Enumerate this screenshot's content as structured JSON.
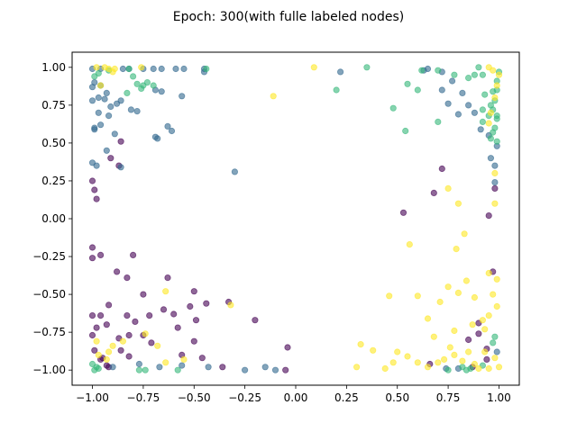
{
  "chart_data": {
    "type": "scatter",
    "title": "Epoch: 300(with fulle labeled nodes)",
    "xlabel": "",
    "ylabel": "",
    "xlim": [
      -1.1,
      1.1
    ],
    "ylim": [
      -1.1,
      1.1
    ],
    "xticks": [
      -1.0,
      -0.75,
      -0.5,
      -0.25,
      0.0,
      0.25,
      0.5,
      0.75,
      1.0
    ],
    "xtick_labels": [
      "−1.00",
      "−0.75",
      "−0.50",
      "−0.25",
      "0.00",
      "0.25",
      "0.50",
      "0.75",
      "1.00"
    ],
    "yticks": [
      1.0,
      0.75,
      0.5,
      0.25,
      0.0,
      -0.25,
      -0.5,
      -0.75,
      -1.0
    ],
    "ytick_labels": [
      "1.00",
      "0.75",
      "0.50",
      "0.25",
      "0.00",
      "−0.25",
      "−0.50",
      "−0.75",
      "−1.00"
    ],
    "grid": false,
    "legend": false,
    "marker_alpha": 0.6,
    "series": [
      {
        "color": "#440154",
        "points": [
          [
            -1.0,
            0.25
          ],
          [
            -0.99,
            0.19
          ],
          [
            -0.98,
            0.13
          ],
          [
            -1.0,
            -0.19
          ],
          [
            -1.0,
            -0.26
          ],
          [
            -0.96,
            -0.24
          ],
          [
            -0.91,
            0.4
          ],
          [
            -0.86,
            0.51
          ],
          [
            -0.87,
            0.35
          ],
          [
            -0.8,
            -0.24
          ],
          [
            -0.88,
            -0.35
          ],
          [
            -0.83,
            -0.39
          ],
          [
            -0.63,
            -0.39
          ],
          [
            -0.92,
            -0.57
          ],
          [
            -0.75,
            -0.5
          ],
          [
            -0.83,
            -0.64
          ],
          [
            -0.93,
            -0.7
          ],
          [
            -0.87,
            -0.79
          ],
          [
            -0.96,
            -0.64
          ],
          [
            -1.0,
            -0.64
          ],
          [
            -0.82,
            -0.77
          ],
          [
            -0.79,
            -0.68
          ],
          [
            -0.75,
            -0.77
          ],
          [
            -0.71,
            -0.82
          ],
          [
            -0.72,
            -0.64
          ],
          [
            -0.65,
            -0.6
          ],
          [
            -0.6,
            -0.63
          ],
          [
            -0.58,
            -0.72
          ],
          [
            -0.5,
            -0.48
          ],
          [
            -0.44,
            -0.56
          ],
          [
            -0.33,
            -0.55
          ],
          [
            -0.2,
            -0.67
          ],
          [
            -0.46,
            -0.92
          ],
          [
            -0.36,
            -0.98
          ],
          [
            -0.05,
            -1.0
          ],
          [
            -0.04,
            -0.85
          ],
          [
            -0.82,
            -0.91
          ],
          [
            -0.86,
            -0.87
          ],
          [
            -0.92,
            -0.98
          ],
          [
            -0.96,
            -0.93
          ],
          [
            -1.0,
            -0.77
          ],
          [
            -0.99,
            -0.87
          ],
          [
            -0.98,
            -0.72
          ],
          [
            -0.52,
            -0.58
          ],
          [
            -0.49,
            -0.67
          ],
          [
            -0.5,
            -0.81
          ],
          [
            -0.56,
            -0.9
          ],
          [
            0.53,
            0.04
          ],
          [
            0.68,
            0.17
          ],
          [
            0.72,
            0.33
          ],
          [
            0.98,
            0.2
          ],
          [
            0.95,
            0.02
          ],
          [
            0.97,
            -0.35
          ],
          [
            0.9,
            -0.76
          ],
          [
            0.85,
            -0.8
          ],
          [
            0.94,
            -0.86
          ],
          [
            0.87,
            -0.98
          ],
          [
            0.94,
            -0.93
          ],
          [
            0.9,
            -0.69
          ],
          [
            0.66,
            -0.96
          ],
          [
            -0.93,
            -0.97
          ],
          [
            -0.95,
            -0.92
          ]
        ]
      },
      {
        "color": "#31688e",
        "points": [
          [
            -1.0,
            0.99
          ],
          [
            -0.96,
            0.99
          ],
          [
            -0.99,
            0.9
          ],
          [
            -1.0,
            0.87
          ],
          [
            -0.96,
            0.88
          ],
          [
            -0.93,
            0.83
          ],
          [
            -0.97,
            0.8
          ],
          [
            -1.0,
            0.78
          ],
          [
            -0.94,
            0.79
          ],
          [
            -0.91,
            0.74
          ],
          [
            -0.97,
            0.7
          ],
          [
            -0.92,
            0.68
          ],
          [
            -0.96,
            0.62
          ],
          [
            -0.99,
            0.59
          ],
          [
            -0.88,
            0.76
          ],
          [
            -0.86,
            0.78
          ],
          [
            -0.81,
            0.72
          ],
          [
            -0.78,
            0.71
          ],
          [
            -0.85,
            0.99
          ],
          [
            -0.82,
            0.99
          ],
          [
            -0.75,
            0.99
          ],
          [
            -0.7,
            0.99
          ],
          [
            -0.66,
            0.99
          ],
          [
            -0.59,
            0.99
          ],
          [
            -0.55,
            0.99
          ],
          [
            -0.45,
            0.99
          ],
          [
            -0.45,
            0.97
          ],
          [
            -0.69,
            0.85
          ],
          [
            -0.66,
            0.84
          ],
          [
            -0.56,
            0.81
          ],
          [
            -0.69,
            0.54
          ],
          [
            -0.68,
            0.53
          ],
          [
            -0.63,
            0.61
          ],
          [
            -0.61,
            0.58
          ],
          [
            -0.86,
            0.34
          ],
          [
            -1.0,
            0.37
          ],
          [
            -0.98,
            0.35
          ],
          [
            -0.93,
            0.45
          ],
          [
            -0.89,
            0.56
          ],
          [
            -0.99,
            0.6
          ],
          [
            -0.3,
            0.31
          ],
          [
            0.22,
            0.97
          ],
          [
            -0.15,
            -0.98
          ],
          [
            -0.25,
            -1.0
          ],
          [
            -0.1,
            -1.0
          ],
          [
            -0.43,
            -0.98
          ],
          [
            -0.56,
            -0.97
          ],
          [
            -0.67,
            -0.98
          ],
          [
            -0.77,
            -0.96
          ],
          [
            -0.9,
            -0.98
          ],
          [
            0.65,
            0.99
          ],
          [
            0.72,
            0.97
          ],
          [
            0.77,
            0.91
          ],
          [
            0.82,
            0.83
          ],
          [
            0.85,
            0.75
          ],
          [
            0.88,
            0.7
          ],
          [
            0.91,
            0.59
          ],
          [
            0.95,
            0.55
          ],
          [
            0.99,
            0.48
          ],
          [
            0.96,
            0.4
          ],
          [
            0.98,
            0.24
          ],
          [
            0.8,
            0.69
          ],
          [
            0.75,
            0.76
          ],
          [
            0.72,
            0.85
          ],
          [
            0.63,
            0.98
          ],
          [
            0.98,
            0.35
          ],
          [
            0.8,
            -0.99
          ],
          [
            0.74,
            -0.99
          ],
          [
            0.99,
            -0.88
          ]
        ]
      },
      {
        "color": "#35b779",
        "points": [
          [
            -0.82,
            0.99
          ],
          [
            -0.8,
            0.94
          ],
          [
            -0.78,
            0.89
          ],
          [
            -0.76,
            0.86
          ],
          [
            -0.83,
            0.83
          ],
          [
            -0.75,
            0.88
          ],
          [
            -0.73,
            0.9
          ],
          [
            -0.7,
            0.88
          ],
          [
            -0.92,
            0.98
          ],
          [
            -0.97,
            0.96
          ],
          [
            -0.99,
            0.94
          ],
          [
            -0.44,
            0.99
          ],
          [
            0.35,
            1.0
          ],
          [
            0.2,
            0.85
          ],
          [
            0.54,
            0.58
          ],
          [
            0.48,
            0.73
          ],
          [
            0.55,
            0.89
          ],
          [
            0.6,
            0.85
          ],
          [
            0.62,
            0.98
          ],
          [
            0.7,
            0.98
          ],
          [
            0.7,
            0.64
          ],
          [
            0.78,
            0.95
          ],
          [
            0.85,
            0.93
          ],
          [
            0.88,
            0.95
          ],
          [
            0.9,
            1.0
          ],
          [
            0.92,
            0.95
          ],
          [
            0.93,
            0.82
          ],
          [
            0.92,
            0.72
          ],
          [
            0.95,
            0.68
          ],
          [
            0.96,
            0.75
          ],
          [
            0.98,
            0.6
          ],
          [
            0.97,
            0.57
          ],
          [
            1.0,
            0.97
          ],
          [
            0.99,
            0.91
          ],
          [
            0.99,
            0.85
          ],
          [
            0.97,
            0.84
          ],
          [
            0.98,
            0.78
          ],
          [
            0.97,
            0.72
          ],
          [
            0.99,
            0.68
          ],
          [
            0.99,
            0.51
          ],
          [
            0.96,
            0.53
          ],
          [
            0.92,
            0.64
          ],
          [
            0.99,
            0.66
          ],
          [
            -0.99,
            -1.0
          ],
          [
            -0.98,
            -0.98
          ],
          [
            -0.97,
            -0.99
          ],
          [
            -1.0,
            -0.96
          ],
          [
            -0.77,
            -1.0
          ],
          [
            -0.74,
            -1.0
          ],
          [
            -0.58,
            -1.0
          ],
          [
            0.75,
            -1.0
          ],
          [
            0.82,
            -0.98
          ],
          [
            0.84,
            -1.0
          ],
          [
            0.86,
            -0.99
          ],
          [
            0.92,
            -0.97
          ],
          [
            0.98,
            -0.78
          ],
          [
            0.97,
            -0.82
          ]
        ]
      },
      {
        "color": "#fde725",
        "points": [
          [
            -0.98,
            1.0
          ],
          [
            -0.94,
            1.0
          ],
          [
            -0.92,
            0.99
          ],
          [
            -0.89,
            0.99
          ],
          [
            -0.76,
            1.0
          ],
          [
            -0.9,
            0.97
          ],
          [
            0.09,
            1.0
          ],
          [
            -0.11,
            0.81
          ],
          [
            0.95,
            1.0
          ],
          [
            0.97,
            0.98
          ],
          [
            1.0,
            0.95
          ],
          [
            0.99,
            0.88
          ],
          [
            0.98,
            0.8
          ],
          [
            0.96,
            0.7
          ],
          [
            0.95,
            0.63
          ],
          [
            0.98,
            0.3
          ],
          [
            0.98,
            0.1
          ],
          [
            0.75,
            0.2
          ],
          [
            0.8,
            0.1
          ],
          [
            0.83,
            -0.1
          ],
          [
            0.56,
            -0.17
          ],
          [
            0.79,
            -0.2
          ],
          [
            0.95,
            -0.36
          ],
          [
            0.99,
            -0.4
          ],
          [
            0.97,
            -0.5
          ],
          [
            0.99,
            -0.58
          ],
          [
            0.95,
            -0.64
          ],
          [
            0.87,
            -0.7
          ],
          [
            0.93,
            -0.73
          ],
          [
            0.85,
            -0.88
          ],
          [
            0.98,
            -0.92
          ],
          [
            1.0,
            -0.98
          ],
          [
            0.95,
            -0.99
          ],
          [
            0.9,
            -0.99
          ],
          [
            0.88,
            -0.96
          ],
          [
            0.82,
            -0.94
          ],
          [
            0.78,
            -0.9
          ],
          [
            0.76,
            -0.85
          ],
          [
            0.73,
            -0.93
          ],
          [
            0.7,
            -0.95
          ],
          [
            0.65,
            -0.98
          ],
          [
            0.6,
            -0.95
          ],
          [
            0.55,
            -0.91
          ],
          [
            0.5,
            -0.88
          ],
          [
            0.48,
            -0.95
          ],
          [
            0.44,
            -0.99
          ],
          [
            0.38,
            -0.87
          ],
          [
            0.32,
            -0.83
          ],
          [
            0.3,
            -0.98
          ],
          [
            0.46,
            -0.51
          ],
          [
            0.6,
            -0.51
          ],
          [
            0.75,
            -0.45
          ],
          [
            0.8,
            -0.49
          ],
          [
            0.65,
            -0.66
          ],
          [
            0.68,
            -0.78
          ],
          [
            0.71,
            -0.55
          ],
          [
            0.78,
            -0.74
          ],
          [
            0.88,
            -0.52
          ],
          [
            0.92,
            -0.67
          ],
          [
            -0.64,
            -0.95
          ],
          [
            -0.68,
            -0.84
          ],
          [
            -0.74,
            -0.76
          ],
          [
            -0.64,
            -0.48
          ],
          [
            -0.55,
            -0.93
          ],
          [
            -0.32,
            -0.57
          ],
          [
            -0.9,
            -0.84
          ],
          [
            -0.92,
            -0.88
          ],
          [
            -0.98,
            -0.81
          ],
          [
            -0.96,
            0.88
          ],
          [
            -0.97,
            -0.9
          ],
          [
            -0.93,
            -0.93
          ],
          [
            -0.85,
            -0.81
          ],
          [
            0.84,
            -0.41
          ],
          [
            0.93,
            -0.88
          ]
        ]
      }
    ]
  }
}
